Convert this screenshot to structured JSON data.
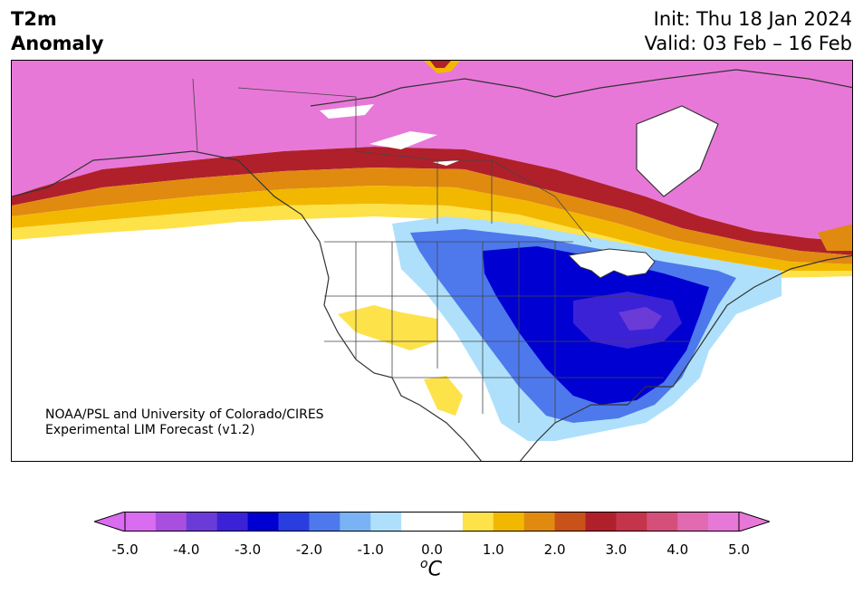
{
  "header": {
    "title_line1": "T2m",
    "title_line2": "Anomaly",
    "init": "Init: Thu 18 Jan 2024",
    "valid": "Valid: 03 Feb – 16 Feb"
  },
  "credit": {
    "line1": "NOAA/PSL and University of Colorado/CIRES",
    "line2": "Experimental LIM Forecast (v1.2)"
  },
  "colorbar": {
    "colors": [
      "#d96cf0",
      "#a84fe0",
      "#6b3bd8",
      "#3b22d6",
      "#0000d2",
      "#2a3ee0",
      "#4d79ec",
      "#7ab3f5",
      "#aee0fb",
      "#ffffff",
      "#ffffff",
      "#fde24a",
      "#f2b800",
      "#e08a10",
      "#c8521a",
      "#b0202a",
      "#c4344a",
      "#d4507a",
      "#e16ab0",
      "#e878d8"
    ],
    "ticks": [
      "-5.0",
      "-4.0",
      "-3.0",
      "-2.0",
      "-1.0",
      "0.0",
      "1.0",
      "2.0",
      "3.0",
      "4.0",
      "5.0"
    ],
    "unit_base": "C",
    "unit_sup": "o"
  },
  "map_regions": {
    "arctic_warm": "#e878d8",
    "band_red": "#b0202a",
    "band_orange": "#e08a10",
    "band_yellow": "#f2b800",
    "light_yellow": "#fde24a",
    "cold_light": "#aee0fb",
    "cold_mid": "#4d79ec",
    "cold_deep": "#0000d2",
    "cold_core": "#3b22d6"
  }
}
